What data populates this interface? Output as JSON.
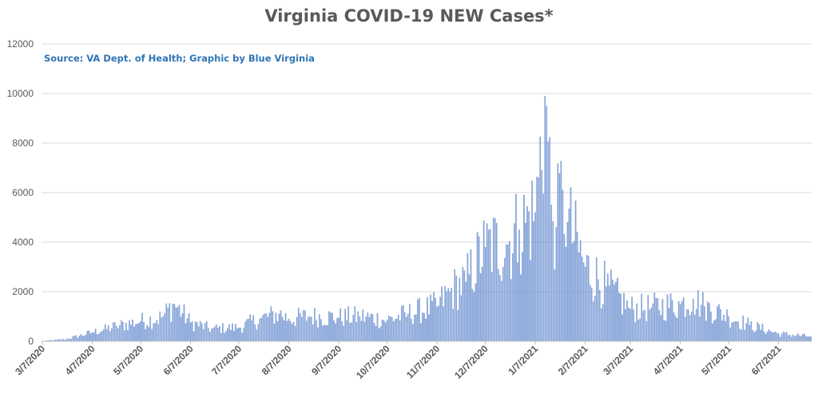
{
  "chart_data": {
    "type": "bar",
    "title": "Virginia COVID-19 NEW Cases*",
    "subtitle": "Source: VA Dept. of Health; Graphic by Blue Virginia",
    "xlabel": "",
    "ylabel": "",
    "ylim": [
      0,
      12000
    ],
    "yticks": [
      0,
      2000,
      4000,
      6000,
      8000,
      10000,
      12000
    ],
    "grid": true,
    "legend": "none",
    "bar_color": "#8eaadb",
    "bar_edge_color": "#4472c4",
    "x_start": "2020-03-07",
    "x_end": "2021-06-27",
    "xtick_labels": [
      "3/7/2020",
      "4/7/2020",
      "5/7/2020",
      "6/7/2020",
      "7/7/2020",
      "8/7/2020",
      "9/7/2020",
      "10/7/2020",
      "11/7/2020",
      "12/7/2020",
      "1/7/2021",
      "2/7/2021",
      "3/7/2021",
      "4/7/2021",
      "5/7/2021",
      "6/7/2021"
    ],
    "xtick_dates": [
      "2020-03-07",
      "2020-04-07",
      "2020-05-07",
      "2020-06-07",
      "2020-07-07",
      "2020-08-07",
      "2020-09-07",
      "2020-10-07",
      "2020-11-07",
      "2020-12-07",
      "2021-01-07",
      "2021-02-07",
      "2021-03-07",
      "2021-04-07",
      "2021-05-07",
      "2021-06-07"
    ],
    "series": [
      {
        "name": "",
        "x": [
          "2020-03-07",
          "2020-03-22",
          "2020-04-07",
          "2020-04-22",
          "2020-05-07",
          "2020-05-20",
          "2020-05-28",
          "2020-06-07",
          "2020-06-20",
          "2020-07-07",
          "2020-07-20",
          "2020-08-01",
          "2020-08-07",
          "2020-08-20",
          "2020-09-07",
          "2020-09-20",
          "2020-10-07",
          "2020-10-20",
          "2020-11-07",
          "2020-11-15",
          "2020-11-25",
          "2020-12-07",
          "2020-12-20",
          "2020-12-28",
          "2021-01-07",
          "2021-01-09",
          "2021-01-13",
          "2021-01-17",
          "2021-01-20",
          "2021-01-24",
          "2021-01-27",
          "2021-02-07",
          "2021-02-20",
          "2021-03-07",
          "2021-03-20",
          "2021-04-07",
          "2021-04-15",
          "2021-04-22",
          "2021-05-07",
          "2021-05-20",
          "2021-06-07",
          "2021-06-27"
        ],
        "y": [
          5,
          80,
          350,
          600,
          800,
          950,
          1500,
          750,
          500,
          550,
          900,
          1100,
          900,
          1000,
          950,
          1000,
          850,
          1100,
          1400,
          2000,
          2400,
          3800,
          3900,
          4500,
          5200,
          6600,
          9900,
          5500,
          4600,
          6100,
          4800,
          3000,
          2200,
          1300,
          1350,
          1500,
          1700,
          1400,
          1000,
          650,
          300,
          190
        ]
      }
    ]
  }
}
